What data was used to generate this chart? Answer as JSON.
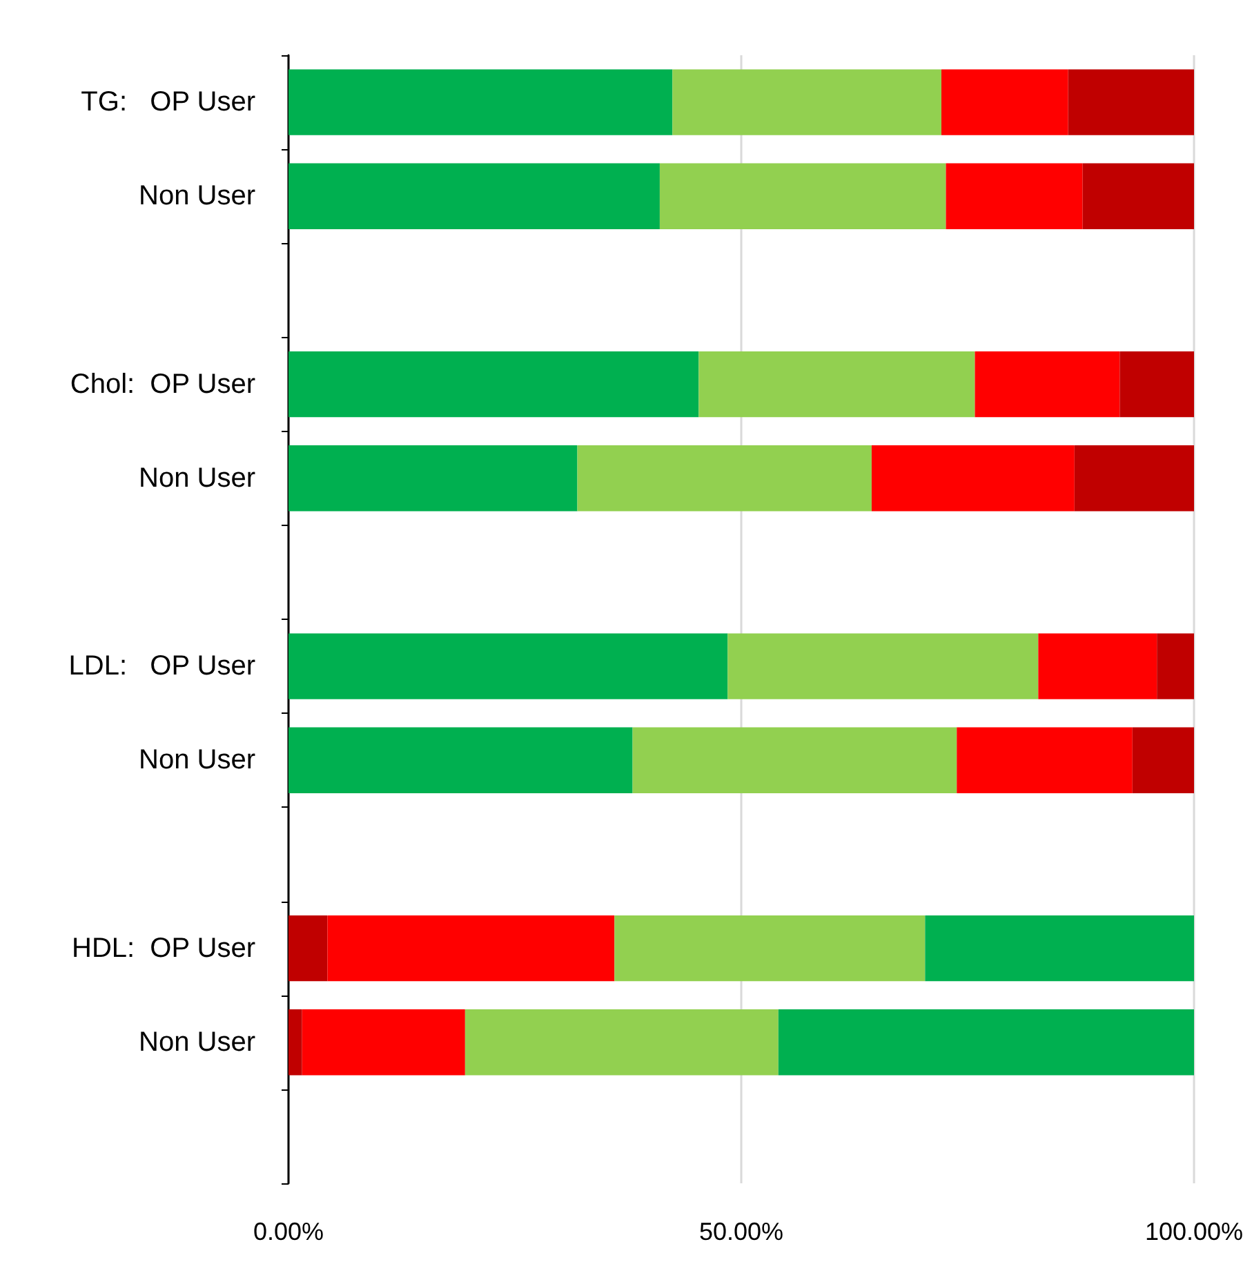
{
  "chart_data": {
    "type": "bar",
    "orientation": "horizontal",
    "stacked": true,
    "categories": [
      "TG:   OP User",
      "Non User",
      null,
      "Chol:  OP User",
      "Non User",
      null,
      "LDL:   OP User",
      "Non User",
      null,
      "HDL:  OP User",
      "Non User",
      null
    ],
    "series": [
      {
        "colors": [
          "#00b050",
          "#00b050",
          null,
          "#00b050",
          "#00b050",
          null,
          "#00b050",
          "#00b050",
          null,
          "#c00000",
          "#c00000",
          null
        ],
        "values": [
          42.4,
          41.0,
          null,
          45.3,
          31.9,
          null,
          48.5,
          38.0,
          null,
          4.3,
          1.5,
          null
        ]
      },
      {
        "colors": [
          "#92d050",
          "#92d050",
          null,
          "#92d050",
          "#92d050",
          null,
          "#92d050",
          "#92d050",
          null,
          "#ff0000",
          "#ff0000",
          null
        ],
        "values": [
          29.7,
          31.6,
          null,
          30.5,
          32.5,
          null,
          34.3,
          35.8,
          null,
          31.7,
          18.0,
          null
        ]
      },
      {
        "colors": [
          "#ff0000",
          "#ff0000",
          null,
          "#ff0000",
          "#ff0000",
          null,
          "#ff0000",
          "#ff0000",
          null,
          "#92d050",
          "#92d050",
          null
        ],
        "values": [
          14.0,
          15.1,
          null,
          16.0,
          22.4,
          null,
          13.1,
          19.4,
          null,
          34.3,
          34.6,
          null
        ]
      },
      {
        "colors": [
          "#c00000",
          "#c00000",
          null,
          "#c00000",
          "#c00000",
          null,
          "#c00000",
          "#c00000",
          null,
          "#00b050",
          "#00b050",
          null
        ],
        "values": [
          13.9,
          12.3,
          null,
          8.2,
          13.2,
          null,
          4.1,
          6.8,
          null,
          29.7,
          45.9,
          null
        ]
      }
    ],
    "xlim": [
      0,
      100
    ],
    "xticks": [
      {
        "value": 0,
        "label": "0.00%"
      },
      {
        "value": 50,
        "label": "50.00%"
      },
      {
        "value": 100,
        "label": "100.00%"
      }
    ],
    "grid": "x"
  }
}
